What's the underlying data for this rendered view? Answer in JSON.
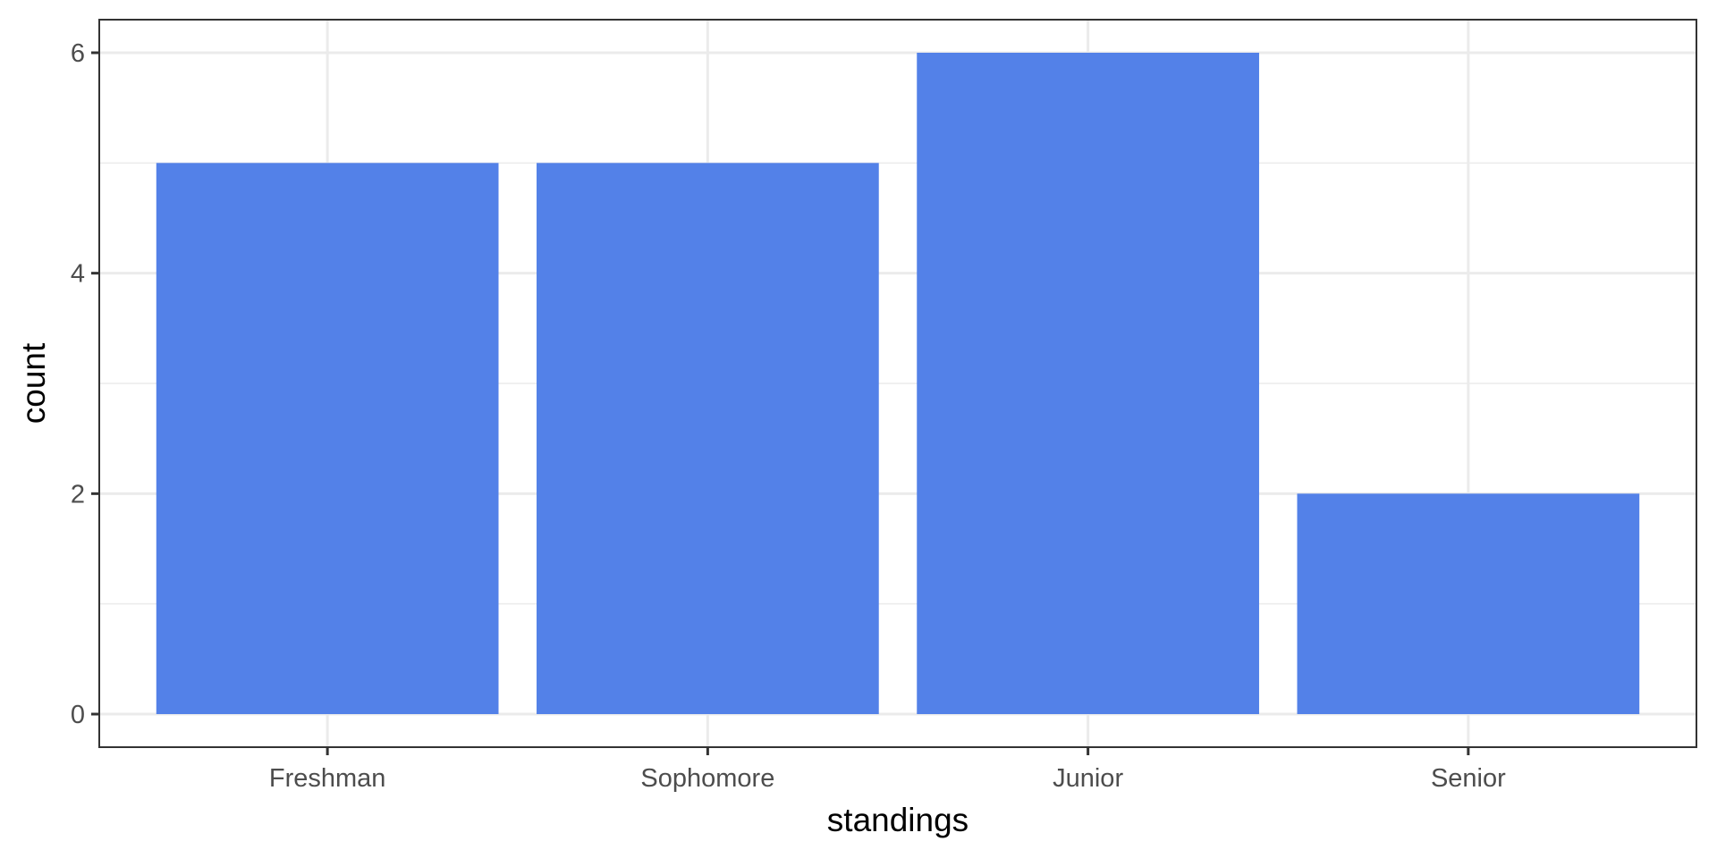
{
  "chart_data": {
    "type": "bar",
    "categories": [
      "Freshman",
      "Sophomore",
      "Junior",
      "Senior"
    ],
    "values": [
      5,
      5,
      6,
      2
    ],
    "title": "",
    "xlabel": "standings",
    "ylabel": "count",
    "ylim": [
      -0.3,
      6.3
    ],
    "y_ticks": [
      0,
      2,
      4,
      6
    ],
    "y_minor_ticks": [
      1,
      3,
      5
    ],
    "grid": true,
    "bar_color": "#5381E8",
    "grid_color": "#EBEBEB",
    "panel_border_color": "#333333"
  }
}
